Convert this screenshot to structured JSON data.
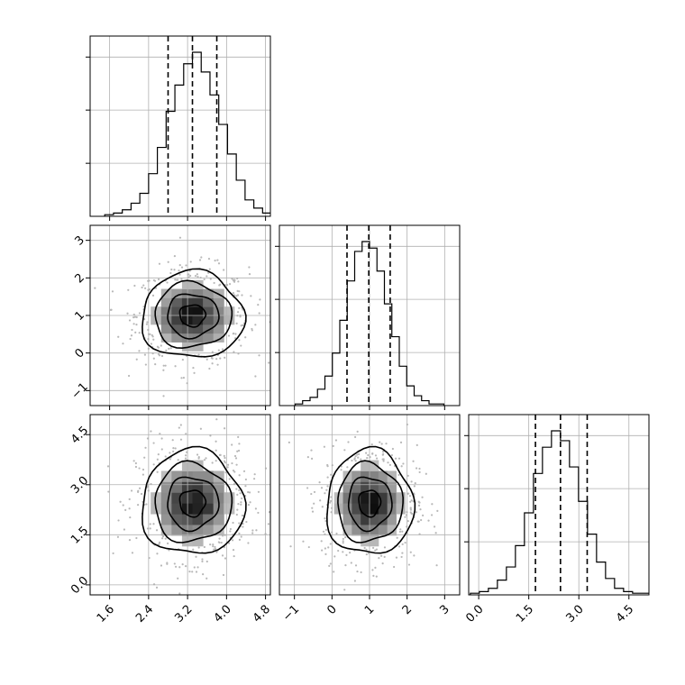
{
  "chart_data": {
    "type": "corner",
    "grid": true,
    "parameters": [
      {
        "ticks": [
          1.6,
          2.4,
          3.2,
          4.0,
          4.8
        ],
        "tick_labels": [
          "1.6",
          "2.4",
          "3.2",
          "4.0",
          "4.8"
        ],
        "range": [
          1.2,
          4.9
        ],
        "mean": 3.3,
        "sigma": 0.5,
        "quantiles": [
          2.8,
          3.3,
          3.8
        ],
        "hist_ticks": [
          0.333,
          0.667,
          1.0
        ]
      },
      {
        "ticks": [
          -1,
          0,
          1,
          2,
          3
        ],
        "tick_labels": [
          "−1",
          "0",
          "1",
          "2",
          "3"
        ],
        "range": [
          -1.4,
          3.4
        ],
        "mean": 1.0,
        "sigma": 0.55,
        "quantiles": [
          0.4,
          0.98,
          1.55
        ],
        "hist_ticks": [
          0.333,
          0.667,
          1.0
        ]
      },
      {
        "ticks": [
          0.0,
          1.5,
          3.0,
          4.5
        ],
        "tick_labels": [
          "0.0",
          "1.5",
          "3.0",
          "4.5"
        ],
        "range": [
          -0.3,
          5.1
        ],
        "mean": 2.45,
        "sigma": 0.75,
        "quantiles": [
          1.7,
          2.45,
          3.25
        ],
        "hist_ticks": [
          0.333,
          0.667,
          1.0
        ]
      }
    ],
    "hist_bins": 20,
    "hist_values": [
      [
        0.01,
        0.02,
        0.04,
        0.08,
        0.14,
        0.26,
        0.42,
        0.64,
        0.8,
        0.93,
        1.0,
        0.88,
        0.74,
        0.56,
        0.38,
        0.22,
        0.1,
        0.05,
        0.02,
        0.01
      ],
      [
        0.01,
        0.03,
        0.05,
        0.1,
        0.18,
        0.32,
        0.52,
        0.76,
        0.94,
        1.0,
        0.96,
        0.82,
        0.62,
        0.42,
        0.24,
        0.12,
        0.06,
        0.03,
        0.01,
        0.01
      ],
      [
        0.01,
        0.02,
        0.04,
        0.09,
        0.17,
        0.3,
        0.5,
        0.74,
        0.9,
        1.0,
        0.94,
        0.78,
        0.57,
        0.37,
        0.2,
        0.1,
        0.04,
        0.02,
        0.01,
        0.01
      ]
    ],
    "contour_levels_sigma": [
      0.5,
      1.0,
      1.5,
      2.0
    ]
  }
}
